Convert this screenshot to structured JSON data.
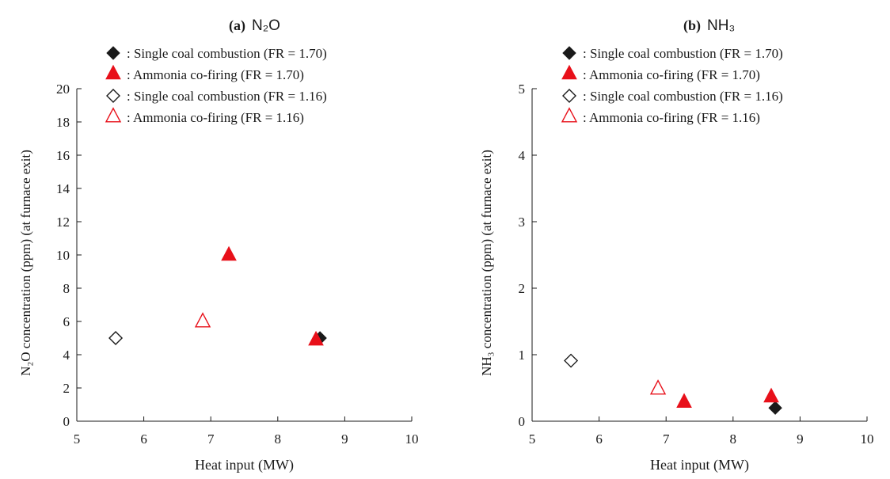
{
  "chart_data": [
    {
      "type": "scatter",
      "panel_label": "(a)",
      "title": "N₂O",
      "xlabel": "Heat input  (MW)",
      "ylabel": "N₂O concentration  (ppm) (at furnace exit)",
      "xlim": [
        5,
        10
      ],
      "ylim": [
        0,
        20
      ],
      "xticks": [
        "5",
        "6",
        "7",
        "8",
        "9",
        "10"
      ],
      "yticks": [
        "0",
        "2",
        "4",
        "6",
        "8",
        "10",
        "12",
        "14",
        "16",
        "18",
        "20"
      ],
      "legend_position": "top-left",
      "series": [
        {
          "name": ": Single coal combustion (FR = 1.70)",
          "marker": "diamond-filled",
          "color": "#1a1a1a",
          "points": [
            {
              "x": 8.63,
              "y": 5.0
            }
          ]
        },
        {
          "name": ": Ammonia co-firing (FR = 1.70)",
          "marker": "triangle-filled",
          "color": "#e8101a",
          "points": [
            {
              "x": 7.27,
              "y": 10.0
            },
            {
              "x": 8.57,
              "y": 4.9
            }
          ]
        },
        {
          "name": ": Single coal combustion (FR = 1.16)",
          "marker": "diamond-open",
          "color": "#1a1a1a",
          "points": [
            {
              "x": 5.58,
              "y": 5.0
            }
          ]
        },
        {
          "name": ": Ammonia co-firing (FR = 1.16)",
          "marker": "triangle-open",
          "color": "#e8101a",
          "points": [
            {
              "x": 6.88,
              "y": 6.0
            }
          ]
        }
      ]
    },
    {
      "type": "scatter",
      "panel_label": "(b)",
      "title": "NH₃",
      "xlabel": "Heat input  (MW)",
      "ylabel": "NH₃ concentration  (ppm) (at furnace exit)",
      "xlim": [
        5,
        10
      ],
      "ylim": [
        0,
        5
      ],
      "xticks": [
        "5",
        "6",
        "7",
        "8",
        "9",
        "10"
      ],
      "yticks": [
        "0",
        "1",
        "2",
        "3",
        "4",
        "5"
      ],
      "legend_position": "top-left",
      "series": [
        {
          "name": ": Single coal combustion (FR = 1.70)",
          "marker": "diamond-filled",
          "color": "#1a1a1a",
          "points": [
            {
              "x": 8.63,
              "y": 0.2
            }
          ]
        },
        {
          "name": ": Ammonia co-firing (FR = 1.70)",
          "marker": "triangle-filled",
          "color": "#e8101a",
          "points": [
            {
              "x": 7.27,
              "y": 0.29
            },
            {
              "x": 8.57,
              "y": 0.37
            }
          ]
        },
        {
          "name": ": Single coal combustion (FR = 1.16)",
          "marker": "diamond-open",
          "color": "#1a1a1a",
          "points": [
            {
              "x": 5.58,
              "y": 0.91
            }
          ]
        },
        {
          "name": ": Ammonia co-firing (FR = 1.16)",
          "marker": "triangle-open",
          "color": "#e8101a",
          "points": [
            {
              "x": 6.88,
              "y": 0.49
            }
          ]
        }
      ]
    }
  ]
}
